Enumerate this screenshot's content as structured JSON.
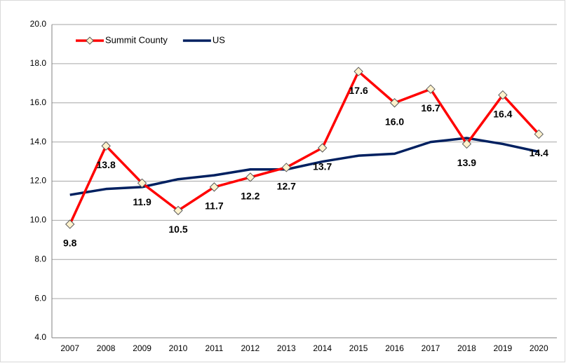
{
  "chart_data": {
    "type": "line",
    "categories": [
      "2007",
      "2008",
      "2009",
      "2010",
      "2011",
      "2012",
      "2013",
      "2014",
      "2015",
      "2016",
      "2017",
      "2018",
      "2019",
      "2020"
    ],
    "series": [
      {
        "name": "Summit County",
        "color": "#ff0000",
        "marker_color": "#fff2cc",
        "values": [
          9.8,
          13.8,
          11.9,
          10.5,
          11.7,
          12.2,
          12.7,
          13.7,
          17.6,
          16.0,
          16.7,
          13.9,
          16.4,
          14.4
        ],
        "value_labels": [
          "9.8",
          "13.8",
          "11.9",
          "10.5",
          "11.7",
          "12.2",
          "12.7",
          "13.7",
          "17.6",
          "16.0",
          "16.7",
          "13.9",
          "16.4",
          "14.4"
        ]
      },
      {
        "name": "US",
        "color": "#002060",
        "values": [
          11.3,
          11.6,
          11.7,
          12.1,
          12.3,
          12.6,
          12.6,
          13.0,
          13.3,
          13.4,
          14.0,
          14.2,
          13.9,
          13.5
        ]
      }
    ],
    "ylim": [
      4,
      20
    ],
    "yticks": [
      {
        "value": 4,
        "label": "4.0"
      },
      {
        "value": 6,
        "label": "6.0"
      },
      {
        "value": 8,
        "label": "8.0"
      },
      {
        "value": 10,
        "label": "10.0"
      },
      {
        "value": 12,
        "label": "12.0"
      },
      {
        "value": 14,
        "label": "14.0"
      },
      {
        "value": 16,
        "label": "16.0"
      },
      {
        "value": 18,
        "label": "18.0"
      },
      {
        "value": 20,
        "label": "20.0"
      }
    ],
    "grid": true,
    "legend": "upper left"
  }
}
